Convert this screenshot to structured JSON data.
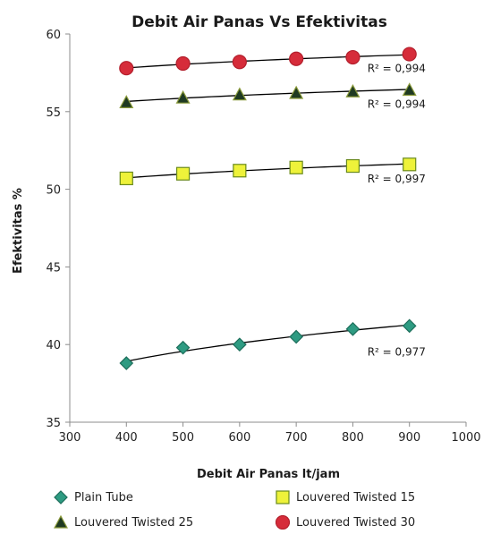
{
  "chart_data": {
    "type": "scatter",
    "title": "Debit Air Panas Vs Efektivitas",
    "xlabel": "Debit Air Panas lt/jam",
    "ylabel": "Efektivitas %",
    "xlim": [
      300,
      1000
    ],
    "ylim": [
      35,
      60
    ],
    "xticks": [
      "300",
      "400",
      "500",
      "600",
      "700",
      "800",
      "900",
      "1000"
    ],
    "yticks": [
      "35",
      "40",
      "45",
      "50",
      "55",
      "60"
    ],
    "grid": false,
    "legend_position": "bottom",
    "trendline": "logarithmic",
    "x": [
      400,
      500,
      600,
      700,
      800,
      900
    ],
    "series": [
      {
        "name": "Plain Tube",
        "marker": "diamond",
        "color": "#2e9b82",
        "stroke": "#1d6e5b",
        "values": [
          38.8,
          39.8,
          40.0,
          40.5,
          41.0,
          41.2
        ],
        "r2": "R² = 0,977"
      },
      {
        "name": "Louvered Twisted 15",
        "marker": "square",
        "color": "#eef23a",
        "stroke": "#6a8a1c",
        "values": [
          50.7,
          51.0,
          51.2,
          51.4,
          51.5,
          51.6
        ],
        "r2": "R² = 0,997"
      },
      {
        "name": "Louvered Twisted 25",
        "marker": "triangle",
        "color": "#1f3a22",
        "stroke": "#8a9a3a",
        "values": [
          55.6,
          55.9,
          56.1,
          56.2,
          56.3,
          56.4
        ],
        "r2": "R² = 0,994"
      },
      {
        "name": "Louvered Twisted 30",
        "marker": "circle",
        "color": "#d62c3a",
        "stroke": "#b31f2c",
        "values": [
          57.8,
          58.1,
          58.2,
          58.4,
          58.5,
          58.7
        ],
        "r2": "R² = 0,994"
      }
    ]
  }
}
